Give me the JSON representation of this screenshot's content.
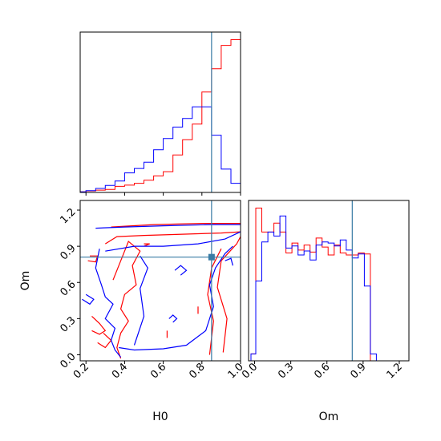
{
  "chart_data": [
    {
      "type": "histogram",
      "panel": "H0 marginal (top-left)",
      "xlim": [
        0.17,
        1.0
      ],
      "x_ticks": [
        0.2,
        0.4,
        0.6,
        0.8,
        1.0
      ],
      "x_tick_labels_shown": false,
      "y_ticks_shown": false,
      "truth_line": {
        "x": 0.85,
        "color": "#3a7ca5"
      },
      "series": [
        {
          "color": "#ff0000",
          "bin_edges": [
            0.17,
            0.2,
            0.25,
            0.3,
            0.35,
            0.4,
            0.45,
            0.5,
            0.55,
            0.6,
            0.65,
            0.7,
            0.75,
            0.8,
            0.85,
            0.9,
            0.95,
            1.0
          ],
          "values": [
            0.4,
            1.0,
            1.5,
            2.0,
            4.0,
            4.8,
            6.0,
            8.0,
            10.8,
            13.6,
            24.5,
            34.5,
            44.8,
            65.8,
            81.0,
            96.3,
            100
          ]
        },
        {
          "color": "#0000ff",
          "bin_edges": [
            0.17,
            0.2,
            0.25,
            0.3,
            0.35,
            0.4,
            0.45,
            0.5,
            0.55,
            0.6,
            0.65,
            0.7,
            0.75,
            0.8,
            0.85,
            0.9,
            0.95,
            1.0
          ],
          "values": [
            0.4,
            1.2,
            2.6,
            4.6,
            7.5,
            12.8,
            15.7,
            19.8,
            28.0,
            35.3,
            42.8,
            48.4,
            56.0,
            56.0,
            37.5,
            15.3,
            6.0
          ]
        }
      ]
    },
    {
      "type": "contour",
      "panel": "H0 vs Om joint (bottom-left)",
      "xlabel": "H0",
      "ylabel": "Om",
      "xlim": [
        0.17,
        1.0
      ],
      "ylim": [
        -0.05,
        1.28
      ],
      "x_ticks": [
        0.2,
        0.4,
        0.6,
        0.8,
        1.0
      ],
      "x_tick_labels": [
        "0.2",
        "0.4",
        "0.6",
        "0.8",
        "1.0"
      ],
      "y_ticks": [
        0.0,
        0.3,
        0.6,
        0.9,
        1.2
      ],
      "y_tick_labels": [
        "0.0",
        "0.3",
        "0.6",
        "0.9",
        "1.2"
      ],
      "truth_point": {
        "x": 0.85,
        "y": 0.81,
        "color": "#3a7ca5"
      },
      "series": [
        {
          "color": "#ff0000",
          "contours": [
            [
              [
                0.33,
                1.06
              ],
              [
                0.55,
                1.08
              ],
              [
                0.8,
                1.09
              ],
              [
                1.0,
                1.09
              ]
            ],
            [
              [
                0.3,
                0.92
              ],
              [
                0.36,
                0.98
              ],
              [
                0.5,
                0.99
              ],
              [
                0.7,
                1.0
              ],
              [
                0.9,
                1.01
              ],
              [
                1.0,
                1.02
              ]
            ],
            [
              [
                0.34,
                0.62
              ],
              [
                0.38,
                0.78
              ],
              [
                0.42,
                0.94
              ],
              [
                0.48,
                0.86
              ],
              [
                0.44,
                0.74
              ],
              [
                0.46,
                0.58
              ],
              [
                0.4,
                0.5
              ],
              [
                0.38,
                0.38
              ],
              [
                0.42,
                0.28
              ],
              [
                0.38,
                0.18
              ],
              [
                0.36,
                0.06
              ],
              [
                0.38,
                -0.03
              ]
            ],
            [
              [
                0.23,
                0.32
              ],
              [
                0.27,
                0.26
              ],
              [
                0.3,
                0.2
              ],
              [
                0.27,
                0.17
              ],
              [
                0.23,
                0.2
              ]
            ],
            [
              [
                0.22,
                0.82
              ],
              [
                0.26,
                0.82
              ],
              [
                0.25,
                0.77
              ],
              [
                0.21,
                0.78
              ]
            ],
            [
              [
                0.91,
                0.02
              ],
              [
                0.93,
                0.3
              ],
              [
                0.88,
                0.56
              ],
              [
                0.9,
                0.78
              ],
              [
                0.98,
                0.92
              ],
              [
                1.0,
                0.98
              ]
            ],
            [
              [
                0.84,
                0.0
              ],
              [
                0.86,
                0.28
              ],
              [
                0.83,
                0.5
              ],
              [
                0.85,
                0.72
              ],
              [
                0.9,
                0.88
              ]
            ],
            [
              [
                0.29,
                0.18
              ],
              [
                0.33,
                0.12
              ],
              [
                0.3,
                0.06
              ],
              [
                0.26,
                0.1
              ]
            ],
            [
              [
                0.5,
                0.92
              ],
              [
                0.53,
                0.92
              ],
              [
                0.5,
                0.9
              ]
            ],
            [
              [
                0.62,
                0.2
              ],
              [
                0.62,
                0.14
              ]
            ],
            [
              [
                0.78,
                0.34
              ],
              [
                0.78,
                0.4
              ]
            ]
          ]
        },
        {
          "color": "#0000ff",
          "contours": [
            [
              [
                0.3,
                0.86
              ],
              [
                0.45,
                0.9
              ],
              [
                0.6,
                0.9
              ],
              [
                0.78,
                0.92
              ],
              [
                0.92,
                0.96
              ],
              [
                1.0,
                1.02
              ]
            ],
            [
              [
                0.25,
                1.05
              ],
              [
                0.4,
                1.06
              ],
              [
                0.6,
                1.07
              ],
              [
                0.85,
                1.08
              ],
              [
                1.0,
                1.08
              ]
            ],
            [
              [
                0.27,
                0.88
              ],
              [
                0.25,
                0.72
              ],
              [
                0.28,
                0.58
              ],
              [
                0.3,
                0.48
              ],
              [
                0.34,
                0.42
              ],
              [
                0.3,
                0.3
              ],
              [
                0.35,
                0.22
              ],
              [
                0.33,
                0.12
              ],
              [
                0.35,
                0.04
              ],
              [
                0.38,
                -0.02
              ]
            ],
            [
              [
                0.37,
                0.06
              ],
              [
                0.45,
                0.04
              ],
              [
                0.6,
                0.05
              ],
              [
                0.72,
                0.08
              ],
              [
                0.82,
                0.2
              ],
              [
                0.86,
                0.4
              ],
              [
                0.84,
                0.58
              ],
              [
                0.87,
                0.72
              ],
              [
                0.92,
                0.84
              ],
              [
                0.96,
                0.9
              ]
            ],
            [
              [
                0.45,
                0.08
              ],
              [
                0.5,
                0.32
              ],
              [
                0.48,
                0.55
              ],
              [
                0.52,
                0.72
              ],
              [
                0.48,
                0.82
              ]
            ],
            [
              [
                0.2,
                0.5
              ],
              [
                0.24,
                0.46
              ],
              [
                0.22,
                0.42
              ],
              [
                0.18,
                0.46
              ]
            ],
            [
              [
                0.63,
                0.3
              ],
              [
                0.65,
                0.33
              ],
              [
                0.67,
                0.3
              ],
              [
                0.65,
                0.27
              ]
            ],
            [
              [
                0.66,
                0.7
              ],
              [
                0.69,
                0.74
              ],
              [
                0.72,
                0.7
              ],
              [
                0.69,
                0.66
              ]
            ],
            [
              [
                0.92,
                0.78
              ],
              [
                0.95,
                0.8
              ],
              [
                0.96,
                0.74
              ]
            ]
          ]
        }
      ]
    },
    {
      "type": "histogram",
      "panel": "Om marginal (bottom-right)",
      "xlabel": "Om",
      "xlim": [
        -0.05,
        1.28
      ],
      "x_ticks": [
        0.0,
        0.3,
        0.6,
        0.9,
        1.2
      ],
      "x_tick_labels": [
        "0.0",
        "0.3",
        "0.6",
        "0.9",
        "1.2"
      ],
      "y_ticks_shown": false,
      "truth_line": {
        "x": 0.81,
        "color": "#3a7ca5"
      },
      "series": [
        {
          "color": "#ff0000",
          "bin_edges": [
            -0.03,
            0.01,
            0.06,
            0.11,
            0.16,
            0.21,
            0.26,
            0.31,
            0.36,
            0.41,
            0.46,
            0.51,
            0.56,
            0.61,
            0.66,
            0.71,
            0.76,
            0.81,
            0.86,
            0.91,
            0.96,
            1.01
          ],
          "values": [
            4.5,
            100,
            84.3,
            84.3,
            90.2,
            84.3,
            70.6,
            77.1,
            72.5,
            75.8,
            71.2,
            80.4,
            74.5,
            69.3,
            75.8,
            70.6,
            69.3,
            69.3,
            70.6,
            70.0,
            0
          ]
        },
        {
          "color": "#0000ff",
          "bin_edges": [
            -0.03,
            0.01,
            0.06,
            0.11,
            0.16,
            0.21,
            0.26,
            0.31,
            0.36,
            0.41,
            0.46,
            0.51,
            0.56,
            0.61,
            0.66,
            0.71,
            0.76,
            0.81,
            0.86,
            0.91,
            0.96,
            1.01,
            1.06
          ],
          "values": [
            4.5,
            52.3,
            77.8,
            84.3,
            81.7,
            94.8,
            73.8,
            75.2,
            69.3,
            71.9,
            66.0,
            75.8,
            77.8,
            77.1,
            75.2,
            79.1,
            72.5,
            67.3,
            70.0,
            49.0,
            4.5,
            0
          ]
        }
      ]
    }
  ]
}
